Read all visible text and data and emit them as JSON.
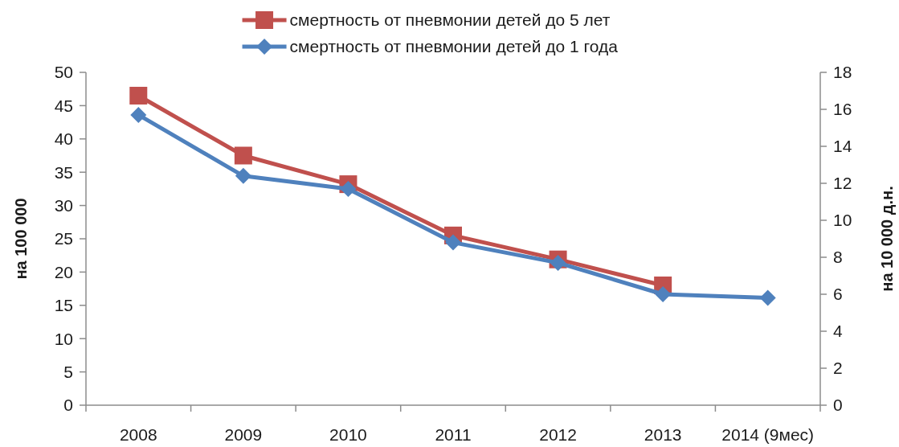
{
  "chart_data": {
    "type": "line",
    "categories": [
      "2008",
      "2009",
      "2010",
      "2011",
      "2012",
      "2013",
      "2014 (9мес)"
    ],
    "series": [
      {
        "name": "смертность от пневмонии детей до 5 лет",
        "color": "#c0504d",
        "marker": "square",
        "values": [
          46.5,
          37.5,
          33.2,
          25.5,
          21.9,
          18.0,
          null
        ]
      },
      {
        "name": "смертность от пневмонии детей до 1 года",
        "color": "#4f81bd",
        "marker": "diamond",
        "axis": "y2",
        "values": [
          15.7,
          12.4,
          11.7,
          8.8,
          7.7,
          6.0,
          5.8
        ]
      }
    ],
    "ylabel": "на 100 000",
    "y2label": "на 10 000 д.н.",
    "ylim": [
      0,
      50
    ],
    "yticks": [
      0,
      5,
      10,
      15,
      20,
      25,
      30,
      35,
      40,
      45,
      50
    ],
    "y2lim": [
      0,
      18
    ],
    "y2ticks": [
      0,
      2,
      4,
      6,
      8,
      10,
      12,
      14,
      16,
      18
    ],
    "legend": "top"
  }
}
